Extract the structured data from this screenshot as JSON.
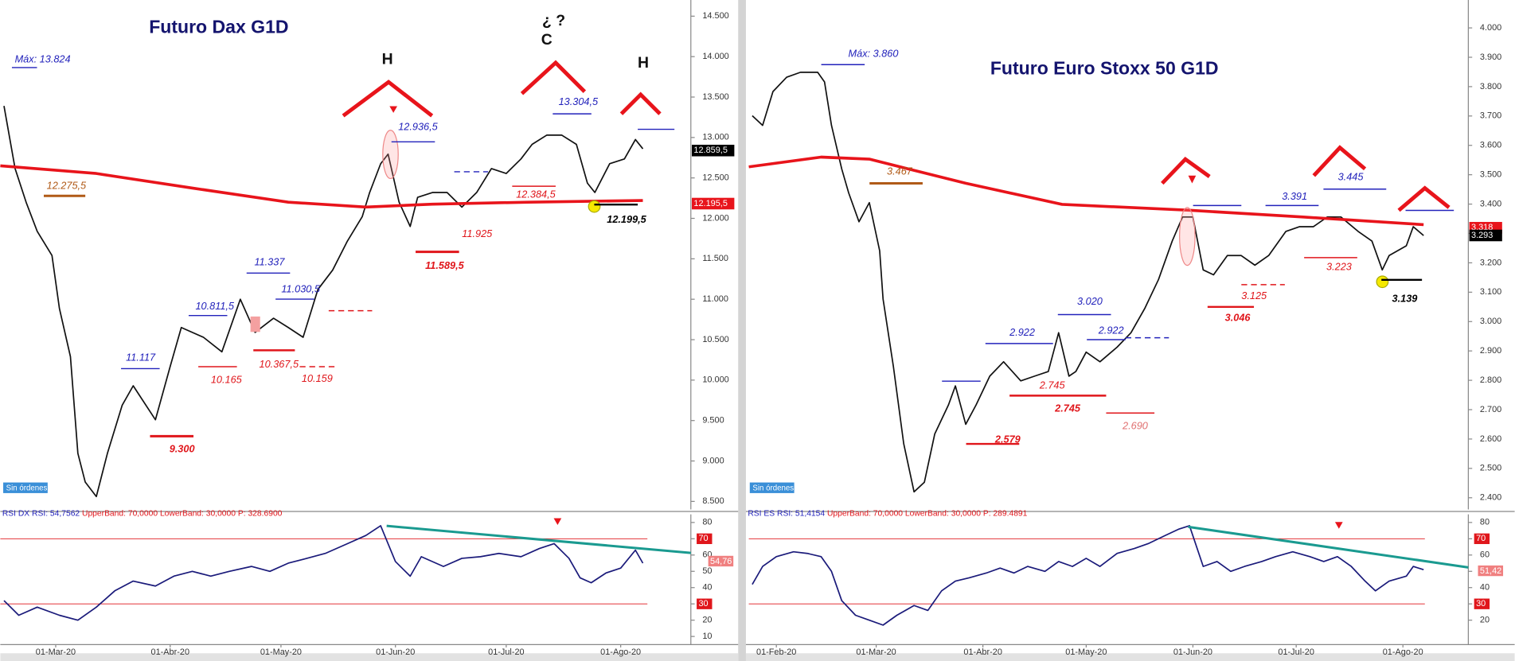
{
  "chart_data": [
    {
      "type": "line",
      "title": "Futuro Dax G1D",
      "xlim": [
        "2020-02-15",
        "2020-08-20"
      ],
      "ylim": [
        8400,
        14700
      ],
      "yticks": [
        {
          "value": 8500,
          "label": "8.500"
        },
        {
          "value": 9000,
          "label": "9.000"
        },
        {
          "value": 9500,
          "label": "9.500"
        },
        {
          "value": 10000,
          "label": "10.000"
        },
        {
          "value": 10500,
          "label": "10.500"
        },
        {
          "value": 11000,
          "label": "11.000"
        },
        {
          "value": 11500,
          "label": "11.500"
        },
        {
          "value": 12000,
          "label": "12.000"
        },
        {
          "value": 12500,
          "label": "12.500"
        },
        {
          "value": 13000,
          "label": "13.000"
        },
        {
          "value": 13500,
          "label": "13.500"
        },
        {
          "value": 14000,
          "label": "14.000"
        },
        {
          "value": 14500,
          "label": "14.500"
        }
      ],
      "series": [
        {
          "color": "#111111",
          "x": [
            "2020-02-16",
            "2020-02-19",
            "2020-02-22",
            "2020-02-25",
            "2020-02-29",
            "2020-03-02",
            "2020-03-05",
            "2020-03-07",
            "2020-03-09",
            "2020-03-12",
            "2020-03-15",
            "2020-03-19",
            "2020-03-22",
            "2020-03-28",
            "2020-04-01",
            "2020-04-04",
            "2020-04-10",
            "2020-04-15",
            "2020-04-20",
            "2020-04-24",
            "2020-04-29",
            "2020-05-03",
            "2020-05-07",
            "2020-05-11",
            "2020-05-15",
            "2020-05-19",
            "2020-05-23",
            "2020-05-25",
            "2020-05-28",
            "2020-05-30",
            "2020-06-02",
            "2020-06-05",
            "2020-06-07",
            "2020-06-11",
            "2020-06-15",
            "2020-06-19",
            "2020-06-23",
            "2020-06-27",
            "2020-07-01",
            "2020-07-05",
            "2020-07-08",
            "2020-07-12",
            "2020-07-16",
            "2020-07-20",
            "2020-07-23",
            "2020-07-25",
            "2020-07-29",
            "2020-08-02",
            "2020-08-05",
            "2020-08-07"
          ],
          "values": [
            13390,
            12615,
            12197,
            11840,
            11540,
            10885,
            10290,
            9095,
            8740,
            8560,
            9095,
            9690,
            9930,
            9510,
            10170,
            10650,
            10530,
            10350,
            11000,
            10590,
            10765,
            10650,
            10530,
            11120,
            11360,
            11720,
            12020,
            12320,
            12675,
            12795,
            12200,
            11900,
            12260,
            12320,
            12320,
            12140,
            12320,
            12615,
            12555,
            12735,
            12915,
            13030,
            13030,
            12915,
            12435,
            12320,
            12675,
            12735,
            12975,
            12860
          ]
        },
        {
          "color": "#e8141b",
          "x": [
            "2020-02-15",
            "2020-03-12",
            "2020-04-07",
            "2020-05-03",
            "2020-05-24",
            "2020-06-11",
            "2020-07-07",
            "2020-08-07"
          ],
          "values": [
            12650,
            12555,
            12375,
            12200,
            12140,
            12175,
            12200,
            12220
          ]
        }
      ],
      "annotations": [
        "Máx: 13.824",
        "12.275,5",
        "11.117",
        "9.300",
        "10.165",
        "10.811,5",
        "11.337",
        "10.367,5",
        "10.159",
        "11.030,5",
        "12.936,5",
        "11.589,5",
        "11.925",
        "12.384,5",
        "13.304,5",
        "12.199,5",
        "H",
        "C",
        "¿ ?",
        "H",
        "12.859,5",
        "12.195,5",
        "Sin órdenes"
      ]
    },
    {
      "type": "line",
      "title_parts": [
        "RSI DX",
        "RSI: 54,7562",
        "UpperBand: 70,0000",
        "LowerBand: 30,0000",
        "P: 328.6900"
      ],
      "xlim": [
        "2020-02-15",
        "2020-08-20"
      ],
      "ylim": [
        5,
        85
      ],
      "yticks": [
        10,
        20,
        30,
        40,
        50,
        60,
        70,
        80
      ],
      "xticks": [
        {
          "value": "2020-03-01",
          "label": "01-Mar-20"
        },
        {
          "value": "2020-04-01",
          "label": "01-Abr-20"
        },
        {
          "value": "2020-05-01",
          "label": "01-May-20"
        },
        {
          "value": "2020-06-01",
          "label": "01-Jun-20"
        },
        {
          "value": "2020-07-01",
          "label": "01-Jul-20"
        },
        {
          "value": "2020-08-01",
          "label": "01-Ago-20"
        }
      ],
      "bands": [
        70,
        30
      ],
      "band_color": "#e0161b",
      "series": [
        {
          "color": "#1a1a7a",
          "x": [
            "2020-02-16",
            "2020-02-20",
            "2020-02-25",
            "2020-03-02",
            "2020-03-07",
            "2020-03-12",
            "2020-03-17",
            "2020-03-22",
            "2020-03-28",
            "2020-04-02",
            "2020-04-07",
            "2020-04-12",
            "2020-04-17",
            "2020-04-23",
            "2020-04-28",
            "2020-05-03",
            "2020-05-08",
            "2020-05-13",
            "2020-05-19",
            "2020-05-24",
            "2020-05-28",
            "2020-06-01",
            "2020-06-05",
            "2020-06-08",
            "2020-06-14",
            "2020-06-19",
            "2020-06-24",
            "2020-06-29",
            "2020-07-05",
            "2020-07-10",
            "2020-07-14",
            "2020-07-18",
            "2020-07-21",
            "2020-07-24",
            "2020-07-28",
            "2020-08-01",
            "2020-08-05",
            "2020-08-07"
          ],
          "values": [
            32,
            23,
            28,
            23,
            20,
            28,
            38,
            44,
            41,
            47,
            50,
            47,
            50,
            53,
            50,
            55,
            58,
            61,
            67,
            72,
            78,
            56,
            47,
            59,
            53,
            58,
            59,
            61,
            59,
            64,
            67,
            58,
            46,
            43,
            49,
            52,
            63,
            55
          ]
        }
      ],
      "annotations": [
        "54,76"
      ]
    },
    {
      "type": "line",
      "title": "Futuro Euro Stoxx 50 G1D",
      "xlim": [
        "2020-01-24",
        "2020-08-20"
      ],
      "ylim": [
        2360,
        4095
      ],
      "yticks": [
        {
          "value": 2400,
          "label": "2.400"
        },
        {
          "value": 2500,
          "label": "2.500"
        },
        {
          "value": 2600,
          "label": "2.600"
        },
        {
          "value": 2700,
          "label": "2.700"
        },
        {
          "value": 2800,
          "label": "2.800"
        },
        {
          "value": 2900,
          "label": "2.900"
        },
        {
          "value": 3000,
          "label": "3.000"
        },
        {
          "value": 3100,
          "label": "3.100"
        },
        {
          "value": 3200,
          "label": "3.200"
        },
        {
          "value": 3300,
          "label": "3.300"
        },
        {
          "value": 3400,
          "label": "3.400"
        },
        {
          "value": 3500,
          "label": "3.500"
        },
        {
          "value": 3600,
          "label": "3.600"
        },
        {
          "value": 3700,
          "label": "3.700"
        },
        {
          "value": 3800,
          "label": "3.800"
        },
        {
          "value": 3900,
          "label": "3.900"
        },
        {
          "value": 4000,
          "label": "4.000"
        }
      ],
      "series": [
        {
          "color": "#111111",
          "x": [
            "2020-01-25",
            "2020-01-28",
            "2020-01-31",
            "2020-02-04",
            "2020-02-08",
            "2020-02-13",
            "2020-02-15",
            "2020-02-17",
            "2020-02-20",
            "2020-02-22",
            "2020-02-25",
            "2020-02-28",
            "2020-03-02",
            "2020-03-03",
            "2020-03-06",
            "2020-03-09",
            "2020-03-12",
            "2020-03-15",
            "2020-03-18",
            "2020-03-22",
            "2020-03-24",
            "2020-03-27",
            "2020-03-30",
            "2020-04-03",
            "2020-04-07",
            "2020-04-12",
            "2020-04-16",
            "2020-04-20",
            "2020-04-23",
            "2020-04-26",
            "2020-04-28",
            "2020-05-01",
            "2020-05-05",
            "2020-05-10",
            "2020-05-14",
            "2020-05-18",
            "2020-05-22",
            "2020-05-26",
            "2020-05-29",
            "2020-06-01",
            "2020-06-04",
            "2020-06-07",
            "2020-06-11",
            "2020-06-15",
            "2020-06-19",
            "2020-06-23",
            "2020-06-28",
            "2020-07-02",
            "2020-07-06",
            "2020-07-10",
            "2020-07-14",
            "2020-07-19",
            "2020-07-23",
            "2020-07-26",
            "2020-07-28",
            "2020-08-02",
            "2020-08-04",
            "2020-08-07"
          ],
          "values": [
            3701,
            3668,
            3783,
            3832,
            3849,
            3849,
            3816,
            3668,
            3520,
            3438,
            3340,
            3405,
            3241,
            3077,
            2847,
            2584,
            2420,
            2453,
            2617,
            2716,
            2781,
            2650,
            2716,
            2814,
            2863,
            2798,
            2814,
            2830,
            2962,
            2814,
            2830,
            2896,
            2863,
            2913,
            2962,
            3044,
            3143,
            3274,
            3356,
            3356,
            3176,
            3159,
            3225,
            3225,
            3192,
            3225,
            3307,
            3323,
            3323,
            3356,
            3356,
            3307,
            3274,
            3176,
            3225,
            3258,
            3323,
            3293
          ]
        },
        {
          "color": "#e8141b",
          "x": [
            "2020-01-24",
            "2020-02-14",
            "2020-02-28",
            "2020-03-27",
            "2020-04-24",
            "2020-05-31",
            "2020-07-03",
            "2020-08-07"
          ],
          "values": [
            3527,
            3560,
            3553,
            3471,
            3399,
            3379,
            3356,
            3330
          ]
        }
      ],
      "annotations": [
        "Máx: 3.860",
        "3.467",
        "2.922",
        "3.020",
        "2.922",
        "2.745",
        "2.745",
        "2.690",
        "2.579",
        "3.046",
        "3.125",
        "3.223",
        "3.391",
        "3.445",
        "3.139",
        "3.293",
        "3.318",
        "Sin órdenes"
      ]
    },
    {
      "type": "line",
      "title_parts": [
        "RSI ES",
        "RSI: 51,4154",
        "UpperBand: 70,0000",
        "LowerBand: 30,0000",
        "P: 289.4891"
      ],
      "xlim": [
        "2020-01-24",
        "2020-08-20"
      ],
      "ylim": [
        5,
        85
      ],
      "yticks": [
        20,
        30,
        40,
        50,
        60,
        70,
        80
      ],
      "xticks": [
        {
          "value": "2020-02-01",
          "label": "01-Feb-20"
        },
        {
          "value": "2020-03-01",
          "label": "01-Mar-20"
        },
        {
          "value": "2020-04-01",
          "label": "01-Abr-20"
        },
        {
          "value": "2020-05-01",
          "label": "01-May-20"
        },
        {
          "value": "2020-06-01",
          "label": "01-Jun-20"
        },
        {
          "value": "2020-07-01",
          "label": "01-Jul-20"
        },
        {
          "value": "2020-08-01",
          "label": "01-Ago-20"
        }
      ],
      "bands": [
        70,
        30
      ],
      "band_color": "#e0161b",
      "series": [
        {
          "color": "#1a1a7a",
          "x": [
            "2020-01-25",
            "2020-01-28",
            "2020-02-01",
            "2020-02-06",
            "2020-02-10",
            "2020-02-14",
            "2020-02-17",
            "2020-02-20",
            "2020-02-24",
            "2020-02-28",
            "2020-03-03",
            "2020-03-07",
            "2020-03-12",
            "2020-03-16",
            "2020-03-20",
            "2020-03-24",
            "2020-03-28",
            "2020-04-02",
            "2020-04-06",
            "2020-04-10",
            "2020-04-14",
            "2020-04-19",
            "2020-04-23",
            "2020-04-27",
            "2020-05-01",
            "2020-05-05",
            "2020-05-10",
            "2020-05-15",
            "2020-05-19",
            "2020-05-24",
            "2020-05-28",
            "2020-05-31",
            "2020-06-04",
            "2020-06-08",
            "2020-06-12",
            "2020-06-16",
            "2020-06-21",
            "2020-06-25",
            "2020-06-30",
            "2020-07-05",
            "2020-07-09",
            "2020-07-13",
            "2020-07-17",
            "2020-07-21",
            "2020-07-24",
            "2020-07-28",
            "2020-08-02",
            "2020-08-04",
            "2020-08-07"
          ],
          "values": [
            42,
            53,
            59,
            62,
            61,
            59,
            50,
            32,
            23,
            20,
            17,
            23,
            29,
            26,
            38,
            44,
            46,
            49,
            52,
            49,
            53,
            50,
            56,
            53,
            58,
            53,
            61,
            64,
            67,
            72,
            76,
            78,
            53,
            56,
            50,
            53,
            56,
            59,
            62,
            59,
            56,
            59,
            53,
            44,
            38,
            44,
            47,
            53,
            51
          ]
        }
      ],
      "annotations": [
        "51,42"
      ]
    }
  ]
}
